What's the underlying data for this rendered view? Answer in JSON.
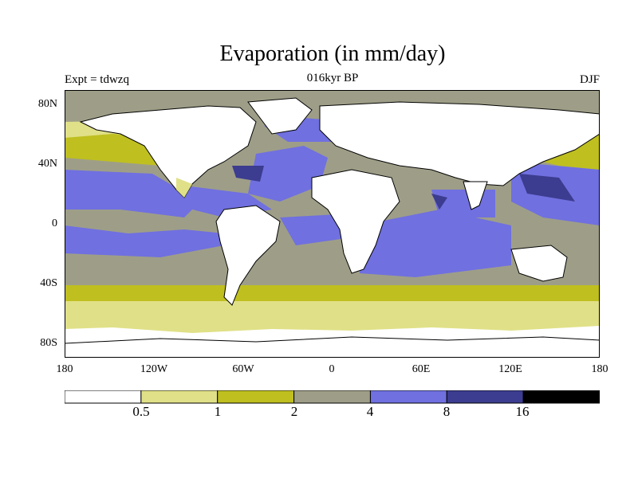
{
  "title": "Evaporation (in mm/day)",
  "subtitle": "016kyr BP",
  "experiment_label": "Expt = tdwzq",
  "season": "DJF",
  "axes": {
    "lat_ticks": [
      "80N",
      "40N",
      "0",
      "40S",
      "80S"
    ],
    "lon_ticks": [
      "180",
      "120W",
      "60W",
      "0",
      "60E",
      "120E",
      "180"
    ]
  },
  "colorbar": {
    "levels": [
      "0.5",
      "1",
      "2",
      "4",
      "8",
      "16"
    ],
    "colors": [
      "#ffffff",
      "#e0e088",
      "#bfbf20",
      "#9e9e88",
      "#7070e0",
      "#3c3c90",
      "#000000"
    ]
  },
  "colors": {
    "land": "#ffffff",
    "ocean_dominant": "#7070e0",
    "ocean_mid": "#9e9e88",
    "coast": "#000000"
  }
}
